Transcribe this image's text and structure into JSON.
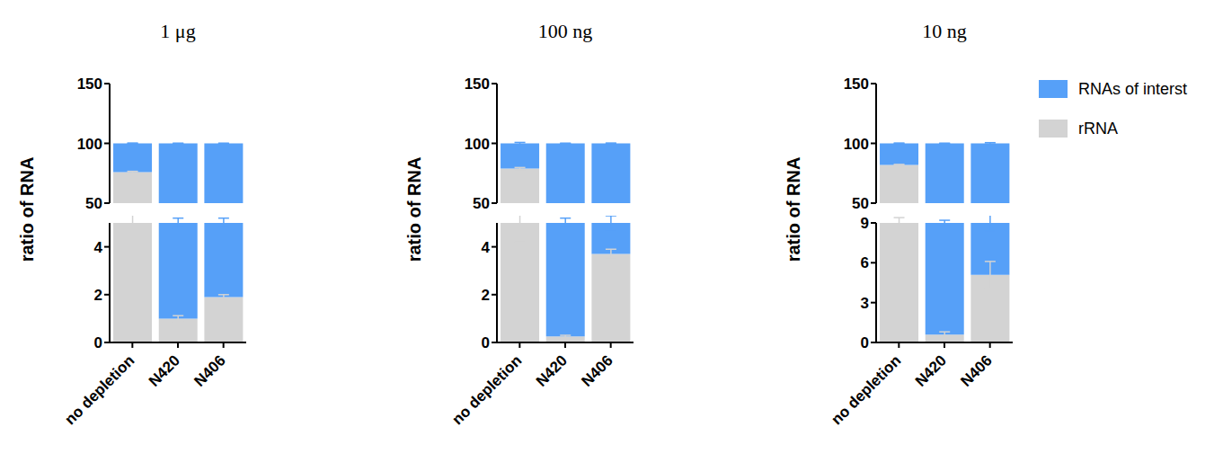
{
  "chart_data": [
    {
      "type": "bar",
      "title": "1 μg",
      "y_label": "ratio of RNA",
      "stacked": true,
      "categories": [
        "no depletion",
        "N420",
        "N406"
      ],
      "ylim": [
        [
          0,
          5
        ],
        [
          50,
          150
        ]
      ],
      "yticks": [
        [
          0,
          2,
          4
        ],
        [
          50,
          100,
          150
        ]
      ],
      "series": [
        {
          "name": "rRNA",
          "color": "#d3d3d3",
          "values": [
            76,
            1,
            1.9
          ],
          "errors": [
            0.6,
            0.12,
            0.1
          ]
        },
        {
          "name": "RNAs of interst",
          "color": "#56a0f8",
          "values": [
            24,
            99,
            98.1
          ],
          "errors": [
            0.3,
            0.2,
            0.2
          ]
        }
      ]
    },
    {
      "type": "bar",
      "title": "100 ng",
      "y_label": "ratio of RNA",
      "stacked": true,
      "categories": [
        "no depletion",
        "N420",
        "N406"
      ],
      "ylim": [
        [
          0,
          5
        ],
        [
          50,
          150
        ]
      ],
      "yticks": [
        [
          0,
          2,
          4
        ],
        [
          50,
          100,
          150
        ]
      ],
      "series": [
        {
          "name": "rRNA",
          "color": "#d3d3d3",
          "values": [
            79,
            0.25,
            3.7
          ],
          "errors": [
            0.8,
            0.05,
            0.2
          ]
        },
        {
          "name": "RNAs of interst",
          "color": "#56a0f8",
          "values": [
            21,
            99.75,
            96.3
          ],
          "errors": [
            0.8,
            0.2,
            0.3
          ]
        }
      ]
    },
    {
      "type": "bar",
      "title": "10 ng",
      "y_label": "ratio of RNA",
      "stacked": true,
      "legend": "right",
      "categories": [
        "no depletion",
        "N420",
        "N406"
      ],
      "ylim": [
        [
          0,
          9
        ],
        [
          50,
          150
        ]
      ],
      "yticks": [
        [
          0,
          3,
          6,
          9
        ],
        [
          50,
          100,
          150
        ]
      ],
      "series": [
        {
          "name": "rRNA",
          "color": "#d3d3d3",
          "values": [
            82,
            0.6,
            5.1
          ],
          "errors": [
            0.4,
            0.2,
            1.0
          ]
        },
        {
          "name": "RNAs of interst",
          "color": "#56a0f8",
          "values": [
            18,
            99.4,
            94.9
          ],
          "errors": [
            0.3,
            0.2,
            0.6
          ]
        }
      ]
    }
  ]
}
